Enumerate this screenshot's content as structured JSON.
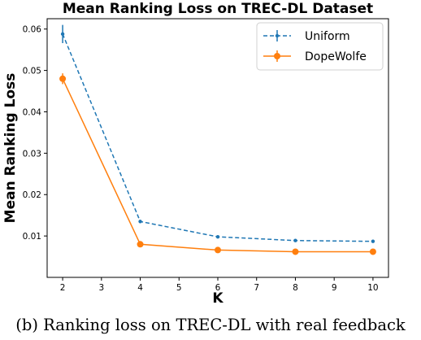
{
  "chart_data": {
    "type": "line",
    "title": "Mean Ranking Loss on TREC-DL Dataset",
    "xlabel": "K",
    "ylabel": "Mean Ranking Loss",
    "xlim": [
      1.6,
      10.4
    ],
    "ylim": [
      0.0,
      0.0625
    ],
    "x_ticks": [
      2,
      3,
      4,
      5,
      6,
      7,
      8,
      9,
      10
    ],
    "y_ticks": [
      0.01,
      0.02,
      0.03,
      0.04,
      0.05,
      0.06
    ],
    "y_tick_labels": [
      "0.01",
      "0.02",
      "0.03",
      "0.04",
      "0.05",
      "0.06"
    ],
    "grid": false,
    "legend_position": "top-right",
    "series": [
      {
        "name": "Uniform",
        "color": "#1f77b4",
        "style": "dashed",
        "marker": "small-dot",
        "x": [
          2,
          4,
          6,
          8,
          10
        ],
        "y": [
          0.0588,
          0.0135,
          0.0098,
          0.0089,
          0.0087
        ],
        "err": [
          0.0022,
          0.0004,
          0.0003,
          0.0002,
          0.0002
        ]
      },
      {
        "name": "DopeWolfe",
        "color": "#ff7f0e",
        "style": "solid",
        "marker": "circle",
        "x": [
          2,
          4,
          6,
          8,
          10
        ],
        "y": [
          0.048,
          0.008,
          0.0066,
          0.0062,
          0.0062
        ],
        "err": [
          0.0013,
          0.0005,
          0.0003,
          0.0002,
          0.0002
        ]
      }
    ]
  },
  "caption": "(b) Ranking loss on TREC-DL with real feedback"
}
